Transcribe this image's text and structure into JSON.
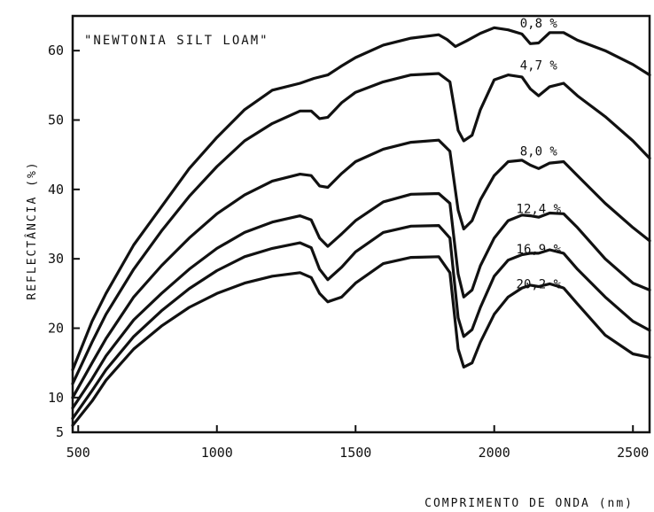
{
  "chart_data": {
    "type": "line",
    "title": "\"NEWTONIA SILT LOAM\"",
    "xlabel": "COMPRIMENTO DE ONDA (nm)",
    "ylabel": "REFLECTÂNCIA (%)",
    "xlim": [
      480,
      2560
    ],
    "ylim": [
      5,
      65
    ],
    "x_ticks": [
      500,
      1000,
      1500,
      2000,
      2500
    ],
    "y_ticks": [
      5,
      10,
      20,
      30,
      40,
      50,
      60
    ],
    "series": [
      {
        "name": "0,8 %",
        "points": [
          [
            480,
            14
          ],
          [
            550,
            21
          ],
          [
            600,
            25
          ],
          [
            700,
            32
          ],
          [
            800,
            37.5
          ],
          [
            900,
            43
          ],
          [
            1000,
            47.5
          ],
          [
            1100,
            51.5
          ],
          [
            1200,
            54.3
          ],
          [
            1300,
            55.3
          ],
          [
            1350,
            56
          ],
          [
            1400,
            56.5
          ],
          [
            1450,
            57.8
          ],
          [
            1500,
            59
          ],
          [
            1600,
            60.8
          ],
          [
            1700,
            61.8
          ],
          [
            1800,
            62.3
          ],
          [
            1830,
            61.6
          ],
          [
            1860,
            60.6
          ],
          [
            1900,
            61.4
          ],
          [
            1950,
            62.5
          ],
          [
            2000,
            63.3
          ],
          [
            2050,
            63
          ],
          [
            2100,
            62.4
          ],
          [
            2130,
            61
          ],
          [
            2160,
            61.1
          ],
          [
            2200,
            62.6
          ],
          [
            2250,
            62.6
          ],
          [
            2300,
            61.5
          ],
          [
            2400,
            60
          ],
          [
            2500,
            58
          ],
          [
            2560,
            56.5
          ]
        ]
      },
      {
        "name": "4,7 %",
        "points": [
          [
            480,
            12
          ],
          [
            550,
            18
          ],
          [
            600,
            22
          ],
          [
            700,
            28.5
          ],
          [
            800,
            34
          ],
          [
            900,
            39
          ],
          [
            1000,
            43.3
          ],
          [
            1100,
            47
          ],
          [
            1200,
            49.5
          ],
          [
            1300,
            51.3
          ],
          [
            1340,
            51.3
          ],
          [
            1370,
            50.2
          ],
          [
            1400,
            50.4
          ],
          [
            1450,
            52.5
          ],
          [
            1500,
            54
          ],
          [
            1600,
            55.5
          ],
          [
            1700,
            56.5
          ],
          [
            1800,
            56.7
          ],
          [
            1840,
            55.5
          ],
          [
            1870,
            48.5
          ],
          [
            1890,
            47
          ],
          [
            1920,
            47.8
          ],
          [
            1950,
            51.5
          ],
          [
            2000,
            55.8
          ],
          [
            2050,
            56.5
          ],
          [
            2100,
            56.2
          ],
          [
            2130,
            54.5
          ],
          [
            2160,
            53.5
          ],
          [
            2200,
            54.8
          ],
          [
            2250,
            55.3
          ],
          [
            2300,
            53.5
          ],
          [
            2400,
            50.5
          ],
          [
            2500,
            47
          ],
          [
            2560,
            44.5
          ]
        ]
      },
      {
        "name": "8,0 %",
        "points": [
          [
            480,
            10
          ],
          [
            550,
            15
          ],
          [
            600,
            18.5
          ],
          [
            700,
            24.5
          ],
          [
            800,
            29
          ],
          [
            900,
            33
          ],
          [
            1000,
            36.5
          ],
          [
            1100,
            39.2
          ],
          [
            1200,
            41.2
          ],
          [
            1300,
            42.2
          ],
          [
            1340,
            42
          ],
          [
            1370,
            40.5
          ],
          [
            1400,
            40.3
          ],
          [
            1450,
            42.3
          ],
          [
            1500,
            44
          ],
          [
            1600,
            45.8
          ],
          [
            1700,
            46.8
          ],
          [
            1800,
            47.1
          ],
          [
            1840,
            45.5
          ],
          [
            1870,
            37
          ],
          [
            1890,
            34.3
          ],
          [
            1920,
            35.5
          ],
          [
            1950,
            38.5
          ],
          [
            2000,
            42
          ],
          [
            2050,
            44
          ],
          [
            2100,
            44.2
          ],
          [
            2130,
            43.5
          ],
          [
            2160,
            43
          ],
          [
            2200,
            43.8
          ],
          [
            2250,
            44
          ],
          [
            2300,
            42
          ],
          [
            2400,
            38
          ],
          [
            2500,
            34.5
          ],
          [
            2560,
            32.6
          ]
        ]
      },
      {
        "name": "12,4 %",
        "points": [
          [
            480,
            8.5
          ],
          [
            550,
            12.7
          ],
          [
            600,
            16
          ],
          [
            700,
            21.2
          ],
          [
            800,
            25
          ],
          [
            900,
            28.5
          ],
          [
            1000,
            31.5
          ],
          [
            1100,
            33.8
          ],
          [
            1200,
            35.3
          ],
          [
            1300,
            36.2
          ],
          [
            1340,
            35.6
          ],
          [
            1370,
            33
          ],
          [
            1400,
            31.8
          ],
          [
            1450,
            33.6
          ],
          [
            1500,
            35.5
          ],
          [
            1600,
            38.2
          ],
          [
            1700,
            39.3
          ],
          [
            1800,
            39.4
          ],
          [
            1840,
            38
          ],
          [
            1870,
            27.8
          ],
          [
            1890,
            24.5
          ],
          [
            1920,
            25.5
          ],
          [
            1950,
            29
          ],
          [
            2000,
            33
          ],
          [
            2050,
            35.5
          ],
          [
            2100,
            36.3
          ],
          [
            2130,
            36.2
          ],
          [
            2160,
            36
          ],
          [
            2200,
            36.6
          ],
          [
            2250,
            36.5
          ],
          [
            2300,
            34.5
          ],
          [
            2400,
            30
          ],
          [
            2500,
            26.5
          ],
          [
            2560,
            25.5
          ]
        ]
      },
      {
        "name": "16,9 %",
        "points": [
          [
            480,
            7
          ],
          [
            550,
            11
          ],
          [
            600,
            14
          ],
          [
            700,
            18.8
          ],
          [
            800,
            22.5
          ],
          [
            900,
            25.7
          ],
          [
            1000,
            28.3
          ],
          [
            1100,
            30.3
          ],
          [
            1200,
            31.5
          ],
          [
            1300,
            32.3
          ],
          [
            1340,
            31.6
          ],
          [
            1370,
            28.5
          ],
          [
            1400,
            27
          ],
          [
            1450,
            28.8
          ],
          [
            1500,
            31
          ],
          [
            1600,
            33.8
          ],
          [
            1700,
            34.7
          ],
          [
            1800,
            34.8
          ],
          [
            1840,
            33
          ],
          [
            1870,
            21.5
          ],
          [
            1890,
            18.8
          ],
          [
            1920,
            19.8
          ],
          [
            1950,
            23
          ],
          [
            2000,
            27.5
          ],
          [
            2050,
            29.8
          ],
          [
            2100,
            30.6
          ],
          [
            2130,
            30.8
          ],
          [
            2160,
            30.8
          ],
          [
            2200,
            31.3
          ],
          [
            2250,
            30.8
          ],
          [
            2300,
            28.5
          ],
          [
            2400,
            24.5
          ],
          [
            2500,
            21
          ],
          [
            2560,
            19.7
          ]
        ]
      },
      {
        "name": "20,2 %",
        "points": [
          [
            480,
            6
          ],
          [
            550,
            9.5
          ],
          [
            600,
            12.5
          ],
          [
            700,
            17
          ],
          [
            800,
            20.3
          ],
          [
            900,
            23
          ],
          [
            1000,
            25
          ],
          [
            1100,
            26.5
          ],
          [
            1200,
            27.5
          ],
          [
            1300,
            28
          ],
          [
            1340,
            27.3
          ],
          [
            1370,
            25
          ],
          [
            1400,
            23.8
          ],
          [
            1450,
            24.5
          ],
          [
            1500,
            26.5
          ],
          [
            1600,
            29.3
          ],
          [
            1700,
            30.2
          ],
          [
            1800,
            30.3
          ],
          [
            1840,
            28
          ],
          [
            1870,
            17
          ],
          [
            1890,
            14.4
          ],
          [
            1920,
            15
          ],
          [
            1950,
            18
          ],
          [
            2000,
            22
          ],
          [
            2050,
            24.5
          ],
          [
            2100,
            25.8
          ],
          [
            2130,
            26.2
          ],
          [
            2160,
            26
          ],
          [
            2200,
            26.4
          ],
          [
            2250,
            25.8
          ],
          [
            2300,
            23.5
          ],
          [
            2400,
            19
          ],
          [
            2500,
            16.3
          ],
          [
            2560,
            15.8
          ]
        ]
      }
    ],
    "series_label_positions": [
      [
        2160,
        62.6
      ],
      [
        2160,
        56.5
      ],
      [
        2160,
        44.1
      ],
      [
        2160,
        35.8
      ],
      [
        2160,
        30.0
      ],
      [
        2160,
        25.0
      ]
    ],
    "grid": false,
    "legend": "inline labels at right"
  }
}
